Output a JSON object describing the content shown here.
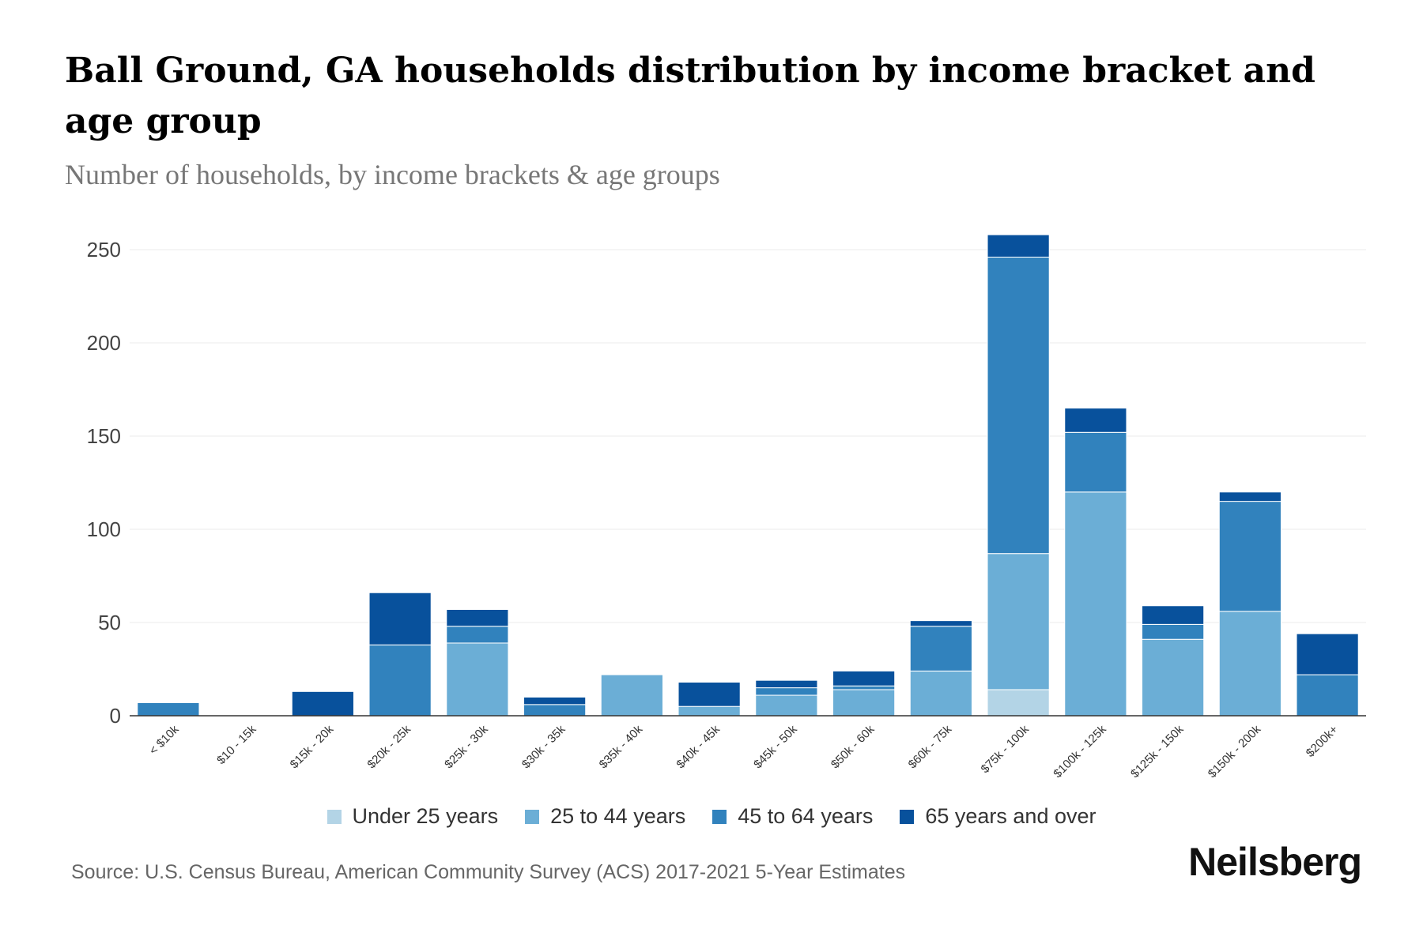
{
  "title": "Ball Ground, GA households distribution by income bracket and age group",
  "subtitle": "Number of households, by income brackets & age groups",
  "source": "Source: U.S. Census Bureau, American Community Survey (ACS) 2017-2021 5-Year Estimates",
  "brand": "Neilsberg",
  "chart_data": {
    "type": "bar",
    "stacked": true,
    "categories": [
      "< $10k",
      "$10 - 15k",
      "$15k - 20k",
      "$20k - 25k",
      "$25k - 30k",
      "$30k - 35k",
      "$35k - 40k",
      "$40k - 45k",
      "$45k - 50k",
      "$50k - 60k",
      "$60k - 75k",
      "$75k - 100k",
      "$100k - 125k",
      "$125k - 150k",
      "$150k - 200k",
      "$200k+"
    ],
    "series": [
      {
        "name": "Under 25 years",
        "color": "#b3d4e6",
        "values": [
          0,
          0,
          0,
          0,
          0,
          0,
          0,
          0,
          0,
          0,
          0,
          14,
          0,
          0,
          0,
          0
        ]
      },
      {
        "name": "25 to 44 years",
        "color": "#6baed6",
        "values": [
          0,
          0,
          0,
          0,
          39,
          0,
          22,
          5,
          11,
          14,
          24,
          73,
          120,
          41,
          56,
          0
        ]
      },
      {
        "name": "45 to 64 years",
        "color": "#3182bd",
        "values": [
          7,
          0,
          0,
          38,
          9,
          6,
          0,
          0,
          4,
          2,
          24,
          159,
          32,
          8,
          59,
          22
        ]
      },
      {
        "name": "65 years and over",
        "color": "#08519c",
        "values": [
          0,
          0,
          13,
          28,
          9,
          4,
          0,
          13,
          4,
          8,
          3,
          12,
          13,
          10,
          5,
          22
        ]
      }
    ],
    "yticks": [
      0,
      50,
      100,
      150,
      200,
      250
    ],
    "ylim": [
      0,
      260
    ],
    "grid": true,
    "legend_position": "bottom"
  }
}
